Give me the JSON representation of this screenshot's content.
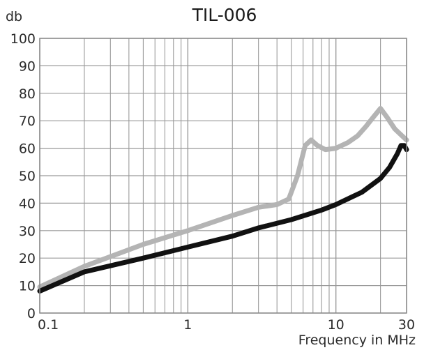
{
  "chart_data": {
    "type": "line",
    "title": "TIL-006",
    "ylabel": "db",
    "xlabel": "Frequency in MHz",
    "xscale": "log",
    "xlim": [
      0.1,
      30
    ],
    "ylim": [
      0,
      100
    ],
    "grid": true,
    "x_ticks": [
      {
        "value": 0.1,
        "label": "0.1"
      },
      {
        "value": 1,
        "label": "1"
      },
      {
        "value": 10,
        "label": "10"
      },
      {
        "value": 30,
        "label": "30"
      }
    ],
    "y_ticks": [
      0,
      10,
      20,
      30,
      40,
      50,
      60,
      70,
      80,
      90,
      100
    ],
    "series": [
      {
        "color": "#b4b4b4",
        "points": [
          [
            0.1,
            9.5
          ],
          [
            0.2,
            17
          ],
          [
            0.5,
            25
          ],
          [
            1,
            30
          ],
          [
            2,
            35.5
          ],
          [
            3,
            38.5
          ],
          [
            4,
            39.5
          ],
          [
            4.8,
            41.5
          ],
          [
            5.5,
            50
          ],
          [
            6.2,
            61
          ],
          [
            6.8,
            63
          ],
          [
            7.5,
            61
          ],
          [
            8.5,
            59.5
          ],
          [
            10,
            60
          ],
          [
            12,
            62
          ],
          [
            14,
            64.5
          ],
          [
            16,
            68
          ],
          [
            18,
            71.5
          ],
          [
            20,
            74.5
          ],
          [
            22,
            71.5
          ],
          [
            25,
            67
          ],
          [
            28,
            64.5
          ],
          [
            30,
            63
          ]
        ]
      },
      {
        "color": "#111111",
        "points": [
          [
            0.1,
            8
          ],
          [
            0.2,
            15
          ],
          [
            0.5,
            20
          ],
          [
            1,
            24
          ],
          [
            2,
            28
          ],
          [
            3,
            31
          ],
          [
            5,
            34
          ],
          [
            8,
            37.5
          ],
          [
            10,
            39.5
          ],
          [
            15,
            44
          ],
          [
            20,
            49
          ],
          [
            23,
            53
          ],
          [
            26,
            58
          ],
          [
            27.5,
            61
          ],
          [
            29,
            61
          ],
          [
            30,
            59.5
          ]
        ]
      }
    ]
  }
}
